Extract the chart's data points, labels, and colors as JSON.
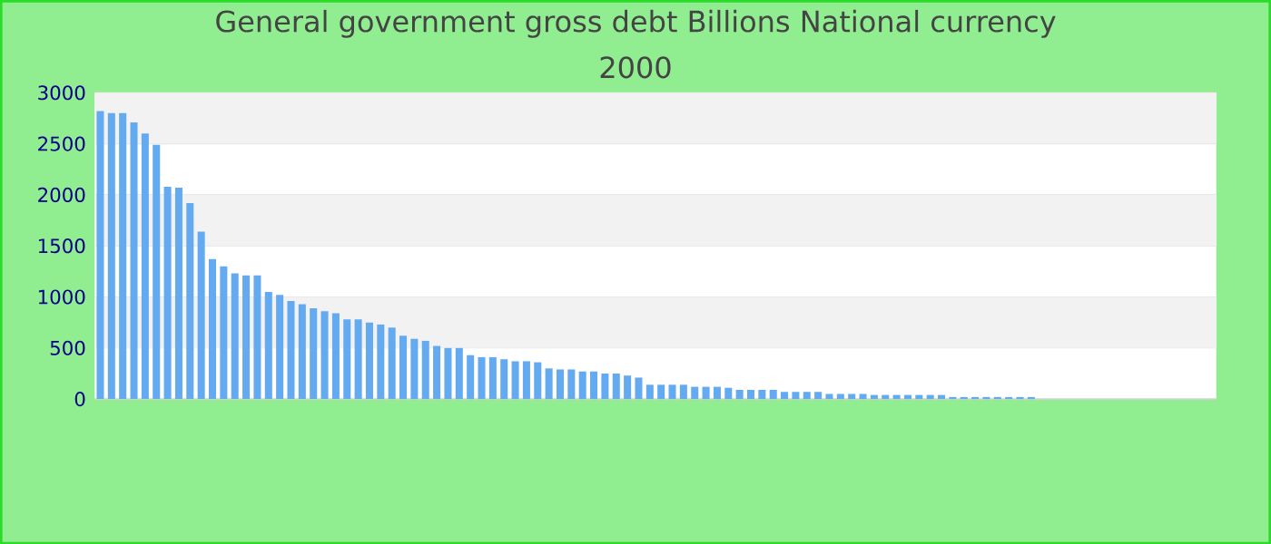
{
  "chart_data": {
    "type": "bar",
    "title": "General government gross debt Billions National currency",
    "subtitle": "2000",
    "categories": [
      null,
      null,
      null,
      null,
      null,
      null,
      null,
      null,
      null,
      null,
      null,
      null,
      null,
      null,
      null,
      null,
      null,
      null,
      null,
      null,
      null,
      null,
      null,
      null,
      null,
      null,
      null,
      null,
      null,
      null,
      null,
      null,
      null,
      null,
      null,
      null,
      null,
      null,
      null,
      null,
      null,
      null,
      null,
      null,
      null,
      null,
      null,
      null,
      null,
      null,
      null,
      null,
      null,
      null,
      null,
      null,
      null,
      null,
      null,
      null,
      null,
      null,
      null,
      null,
      null,
      null,
      null,
      null,
      null,
      null,
      null,
      null,
      null,
      null,
      null,
      null,
      null,
      null,
      null,
      null,
      null,
      null,
      null,
      null,
      null,
      null,
      null,
      null,
      null,
      null,
      null,
      null,
      null,
      null,
      null,
      null,
      null,
      null,
      null,
      null
    ],
    "values": [
      2820,
      2800,
      2800,
      2710,
      2600,
      2490,
      2080,
      2070,
      1920,
      1640,
      1370,
      1300,
      1230,
      1210,
      1210,
      1050,
      1020,
      960,
      930,
      890,
      860,
      840,
      780,
      780,
      750,
      730,
      700,
      620,
      590,
      570,
      520,
      500,
      500,
      430,
      410,
      410,
      390,
      370,
      370,
      360,
      300,
      290,
      290,
      270,
      270,
      250,
      250,
      230,
      210,
      140,
      140,
      140,
      140,
      120,
      120,
      120,
      110,
      90,
      90,
      90,
      90,
      70,
      70,
      70,
      70,
      50,
      50,
      50,
      50,
      40,
      40,
      40,
      40,
      40,
      40,
      40,
      20,
      20,
      20,
      20,
      20,
      20,
      20,
      20,
      0,
      0,
      0,
      0,
      0,
      0,
      0,
      0,
      0,
      0,
      0,
      0,
      0,
      0,
      0,
      0
    ],
    "color": "#64aaf0",
    "ylim": [
      0,
      3000
    ],
    "yticks": [
      0,
      500,
      1000,
      1500,
      2000,
      2500,
      3000
    ],
    "grid": "y",
    "tick_labels": "y"
  }
}
